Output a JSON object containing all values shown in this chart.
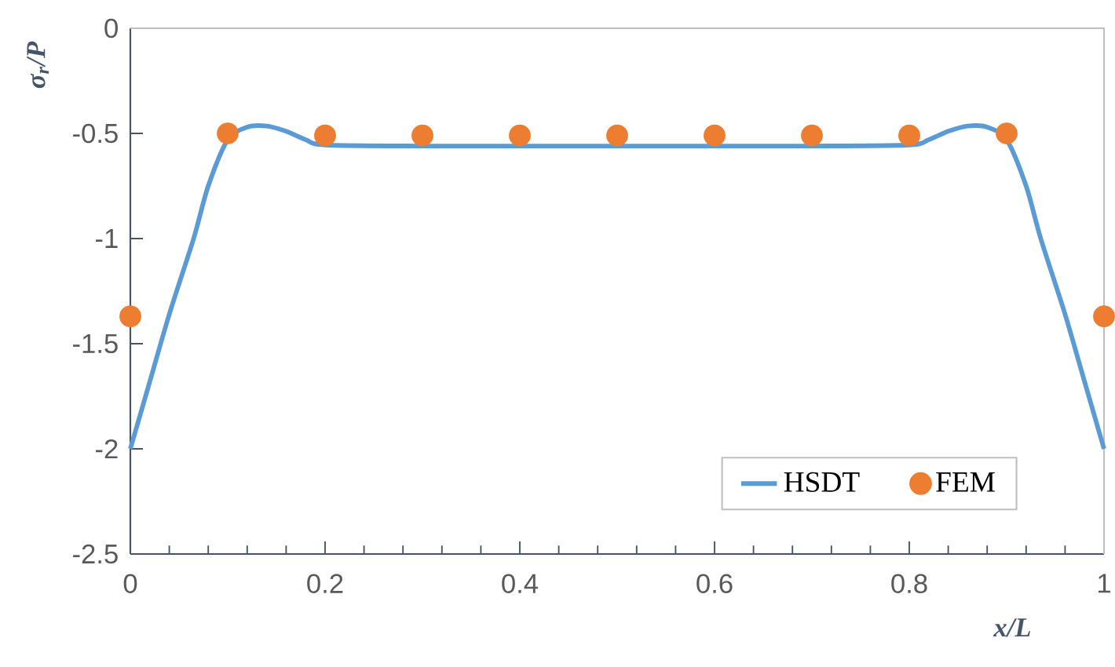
{
  "chart_data": {
    "type": "line",
    "xlabel": "*x/L*",
    "ylabel": "*σ$_{r}$/P*",
    "xlim": [
      0,
      1
    ],
    "xticks": [
      0,
      0.2,
      0.4,
      0.6,
      0.8,
      1
    ],
    "ylim": [
      -2.5,
      0
    ],
    "yticks": [
      -2.5,
      -2,
      -1.5,
      -1,
      -0.5,
      0
    ],
    "grid": false,
    "legend": "bottom right",
    "series": [
      {
        "name": "HSDT",
        "color": "#5b9bd5",
        "x": [
          0,
          0.02,
          0.04,
          0.065,
          0.08,
          0.1,
          0.12,
          0.14,
          0.16,
          0.18,
          0.2,
          0.3,
          0.4,
          0.5,
          0.6,
          0.7,
          0.8,
          0.82,
          0.84,
          0.86,
          0.88,
          0.9,
          0.92,
          0.935,
          0.96,
          0.98,
          1
        ],
        "values": [
          -2.0,
          -1.68,
          -1.36,
          -1.0,
          -0.75,
          -0.53,
          -0.47,
          -0.465,
          -0.49,
          -0.53,
          -0.555,
          -0.56,
          -0.56,
          -0.56,
          -0.56,
          -0.56,
          -0.555,
          -0.53,
          -0.49,
          -0.465,
          -0.47,
          -0.53,
          -0.75,
          -1.0,
          -1.36,
          -1.68,
          -2.0
        ]
      },
      {
        "name": "FEM",
        "type": "scatter",
        "color": "#ed7d31",
        "x": [
          0,
          0.1,
          0.2,
          0.3,
          0.4,
          0.5,
          0.6,
          0.7,
          0.8,
          0.9,
          1
        ],
        "values": [
          -1.37,
          -0.5,
          -0.51,
          -0.51,
          -0.51,
          -0.51,
          -0.51,
          -0.51,
          -0.51,
          -0.5,
          -1.37
        ]
      }
    ]
  }
}
